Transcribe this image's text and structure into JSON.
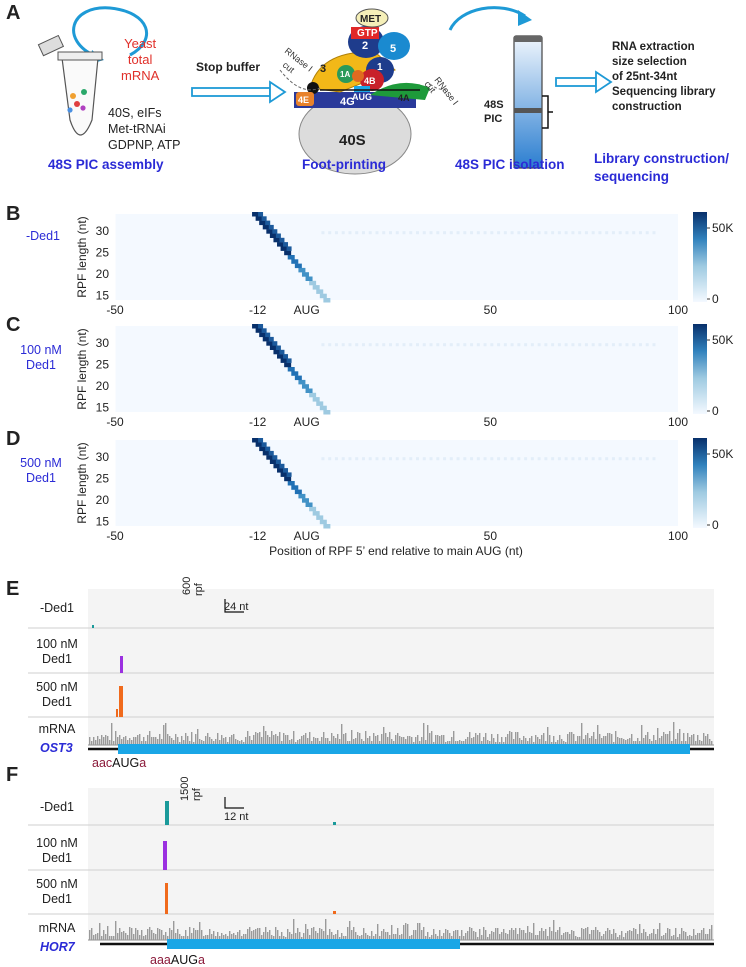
{
  "panels": {
    "A": "A",
    "B": "B",
    "C": "C",
    "D": "D",
    "E": "E",
    "F": "F"
  },
  "panel_a": {
    "tube_labels": {
      "yeast": "Yeast",
      "total": "total",
      "mrna": "mRNA"
    },
    "ingredients": [
      "40S, eIFs",
      "Met-tRNAi",
      "GDPNP, ATP"
    ],
    "step1_title": "48S PIC assembly",
    "arrow1_label": "Stop buffer",
    "complex": {
      "met": "MET",
      "gtp": "GTP",
      "f2": "2",
      "f5": "5",
      "f3": "3",
      "f1a": "1A",
      "f1": "1",
      "f4b": "4B",
      "f4a": "4A",
      "f4e": "4E",
      "f4g": "4G",
      "aug": "AUG",
      "ribosome": "40S",
      "rnase_left_1": "RNase I",
      "rnase_left_2": "cut",
      "rnase_right_1": "RNase I",
      "rnase_right_2": "cut"
    },
    "step2_title": "Foot-printing",
    "gradient_label_1": "48S",
    "gradient_label_2": "PIC",
    "step3_title": "48S PIC isolation",
    "library_steps": [
      "RNA extraction",
      "size selection",
      "of 25nt-34nt",
      "Sequencing library",
      "construction"
    ],
    "step4_title_1": "Library construction/",
    "step4_title_2": "sequencing"
  },
  "heatmaps": [
    {
      "condition": [
        "-Ded1"
      ]
    },
    {
      "condition": [
        "100 nM",
        "Ded1"
      ]
    },
    {
      "condition": [
        "500 nM",
        "Ded1"
      ]
    }
  ],
  "heatmap_axes": {
    "ylabel": "RPF length (nt)",
    "yticks": [
      "30",
      "25",
      "20",
      "15"
    ],
    "xticks": [
      "-50",
      "-12",
      "AUG",
      "50",
      "100"
    ],
    "xlabel": "Position of RPF 5’ end relative to main AUG (nt)",
    "colorbar_ticks": [
      "50K",
      "0"
    ]
  },
  "chart_data": [
    {
      "type": "heatmap",
      "title": "-Ded1",
      "xlabel": "Position of RPF 5’ end relative to main AUG (nt)",
      "ylabel": "RPF length (nt)",
      "xlim": [
        -50,
        100
      ],
      "ylim": [
        14,
        34
      ],
      "colorbar_range": [
        0,
        60000
      ],
      "colorbar_ticks": [
        "50K",
        "0"
      ],
      "peak_position": -12,
      "peak_lengths": [
        28,
        32
      ]
    },
    {
      "type": "heatmap",
      "title": "100 nM Ded1",
      "xlabel": "Position of RPF 5’ end relative to main AUG (nt)",
      "ylabel": "RPF length (nt)",
      "xlim": [
        -50,
        100
      ],
      "ylim": [
        14,
        34
      ],
      "colorbar_range": [
        0,
        60000
      ],
      "colorbar_ticks": [
        "50K",
        "0"
      ],
      "peak_position": -12,
      "peak_lengths": [
        28,
        32
      ]
    },
    {
      "type": "heatmap",
      "title": "500 nM Ded1",
      "xlabel": "Position of RPF 5’ end relative to main AUG (nt)",
      "ylabel": "RPF length (nt)",
      "xlim": [
        -50,
        100
      ],
      "ylim": [
        14,
        34
      ],
      "colorbar_range": [
        0,
        60000
      ],
      "colorbar_ticks": [
        "50K",
        "0"
      ],
      "peak_position": -12,
      "peak_lengths": [
        28,
        32
      ]
    }
  ],
  "panel_e": {
    "tracks": [
      {
        "label": [
          "-Ded1"
        ],
        "color": "#1a9a9a"
      },
      {
        "label": [
          "100 nM",
          "Ded1"
        ],
        "color": "#9b30e0"
      },
      {
        "label": [
          "500 nM",
          "Ded1"
        ],
        "color": "#f06a1c"
      },
      {
        "label": [
          "mRNA"
        ],
        "color": "#8c8c8c"
      }
    ],
    "scale_y": "600",
    "scale_y_unit": "rpf",
    "scale_x": "24 nt",
    "gene": "OST3",
    "context_pre": "aac",
    "context_aug": "AUG",
    "context_post": "a"
  },
  "panel_f": {
    "tracks": [
      {
        "label": [
          "-Ded1"
        ],
        "color": "#1a9a9a"
      },
      {
        "label": [
          "100 nM",
          "Ded1"
        ],
        "color": "#9b30e0"
      },
      {
        "label": [
          "500 nM",
          "Ded1"
        ],
        "color": "#f06a1c"
      },
      {
        "label": [
          "mRNA"
        ],
        "color": "#8c8c8c"
      }
    ],
    "scale_y": "1500",
    "scale_y_unit": "rpf",
    "scale_x": "12 nt",
    "gene": "HOR7",
    "context_pre": "aaa",
    "context_aug": "AUG",
    "context_post": "a"
  },
  "colors": {
    "heat_dark": "#08306b",
    "heat_light": "#f4f9ff",
    "cds": "#1aa6e6",
    "label_blue": "#2b2bd6",
    "yeast_red": "#e0302a",
    "context_red": "#8b1a3a",
    "arrow_blue": "#1e9ad6"
  }
}
